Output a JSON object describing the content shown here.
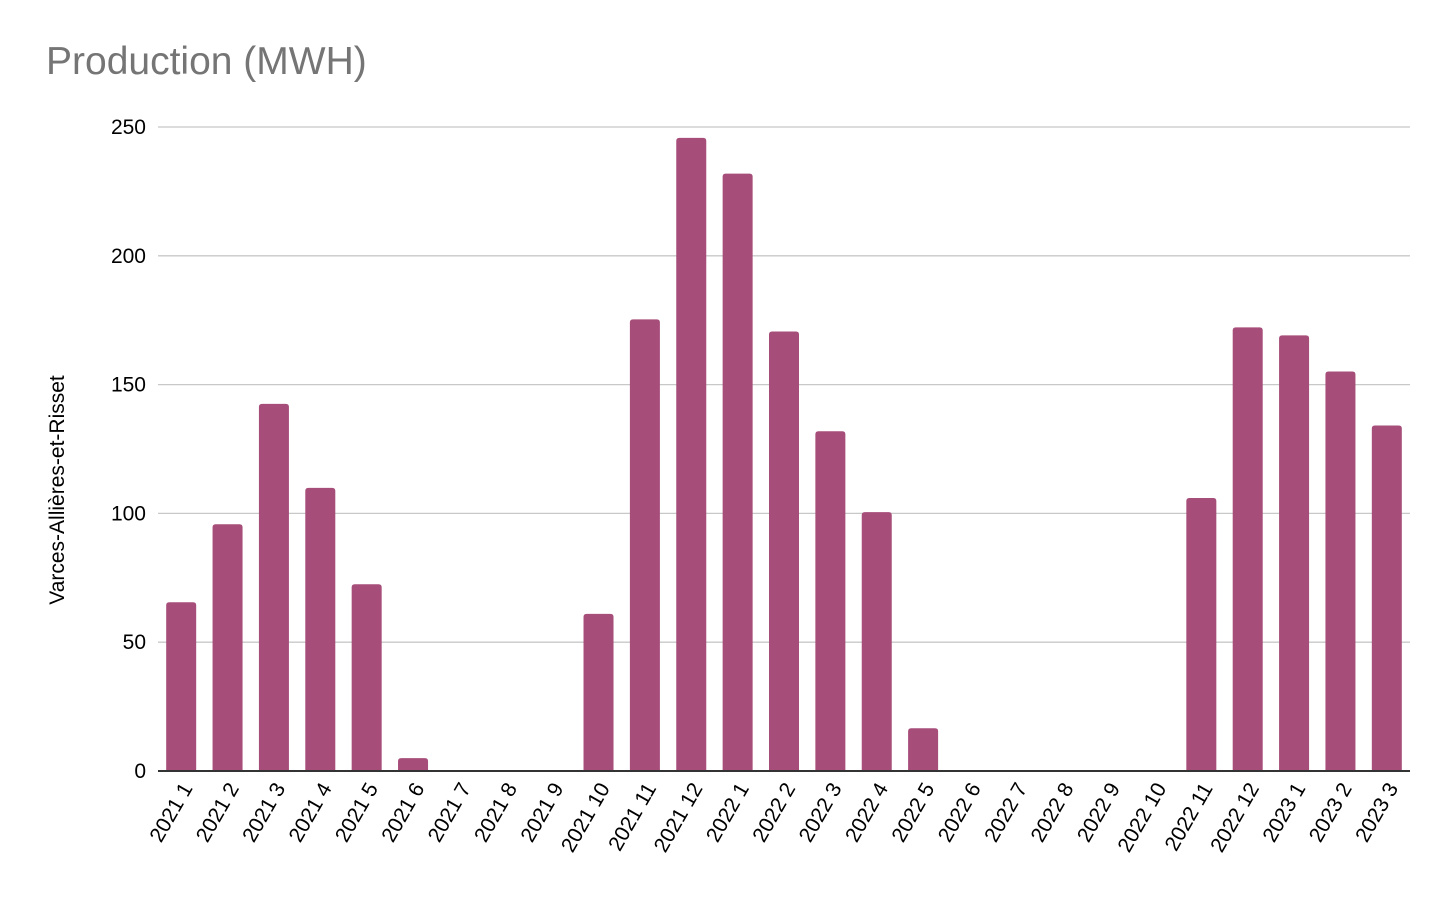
{
  "chart_data": {
    "type": "bar",
    "title": "Production (MWH)",
    "xlabel": "",
    "ylabel": "Varces-Allières-et-Risset",
    "ylim": [
      0,
      250
    ],
    "yticks": [
      0,
      50,
      100,
      150,
      200,
      250
    ],
    "grid": true,
    "legend": "none",
    "bar_color": "#a64d79",
    "categories": [
      "2021 1",
      "2021 2",
      "2021 3",
      "2021 4",
      "2021 5",
      "2021 6",
      "2021 7",
      "2021 8",
      "2021 9",
      "2021 10",
      "2021 11",
      "2021 12",
      "2022 1",
      "2022 2",
      "2022 3",
      "2022 4",
      "2022 5",
      "2022 6",
      "2022 7",
      "2022 8",
      "2022 9",
      "2022 10",
      "2022 11",
      "2022 12",
      "2023 1",
      "2023 2",
      "2023 3"
    ],
    "values": [
      65.5,
      95.8,
      142.5,
      109.9,
      72.5,
      5.0,
      0,
      0,
      0,
      61.0,
      175.3,
      245.8,
      231.9,
      170.6,
      131.9,
      100.5,
      16.6,
      0,
      0,
      0,
      0,
      0,
      106.0,
      172.2,
      169.1,
      155.1,
      134.1
    ]
  }
}
